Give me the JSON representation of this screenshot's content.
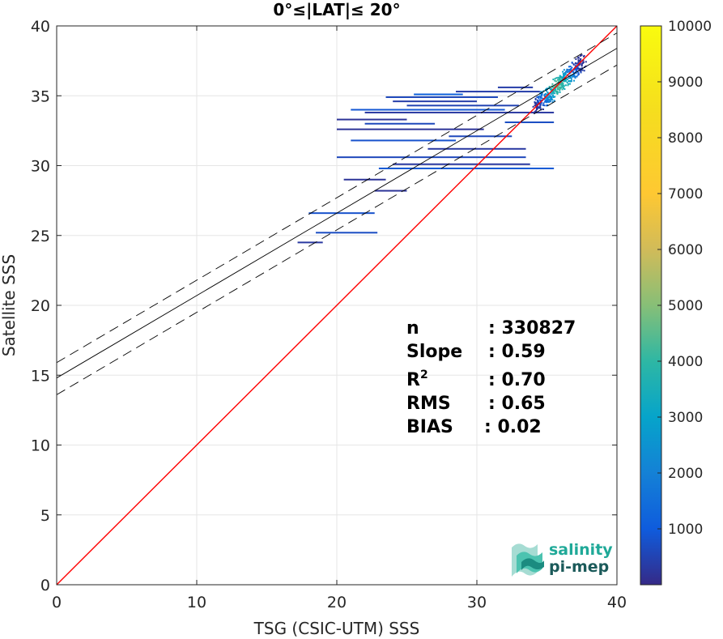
{
  "chart_data": {
    "type": "heatmap",
    "title": "0°≤|LAT|≤ 20°",
    "xlabel": "TSG (CSIC-UTM) SSS",
    "ylabel": "Satellite SSS",
    "xlim": [
      0,
      40
    ],
    "ylim": [
      0,
      40
    ],
    "xticks": [
      "0",
      "10",
      "20",
      "30",
      "40"
    ],
    "yticks": [
      "0",
      "5",
      "10",
      "15",
      "20",
      "25",
      "30",
      "35",
      "40"
    ],
    "grid": true,
    "colorbar": {
      "range": [
        0,
        10000
      ],
      "ticks": [
        "1000",
        "2000",
        "3000",
        "4000",
        "5000",
        "6000",
        "7000",
        "8000",
        "9000",
        "10000"
      ],
      "colormap": "parula"
    },
    "lines": [
      {
        "name": "identity",
        "slope": 1.0,
        "intercept": 0.0,
        "color": "#ff0000",
        "style": "solid"
      },
      {
        "name": "regression",
        "slope": 0.59,
        "intercept": 14.8,
        "color": "#000000",
        "style": "solid"
      },
      {
        "name": "regression-upper",
        "slope": 0.59,
        "intercept": 15.9,
        "color": "#000000",
        "style": "dashed"
      },
      {
        "name": "regression-lower",
        "slope": 0.59,
        "intercept": 13.6,
        "color": "#000000",
        "style": "dashed"
      }
    ],
    "density_segments": [
      {
        "x1": 17.2,
        "x2": 19.0,
        "y": 24.5,
        "count": 300
      },
      {
        "x1": 18.5,
        "x2": 22.9,
        "y": 25.2,
        "count": 700
      },
      {
        "x1": 18.0,
        "x2": 22.7,
        "y": 26.6,
        "count": 800
      },
      {
        "x1": 22.7,
        "x2": 25.0,
        "y": 28.2,
        "count": 200
      },
      {
        "x1": 20.5,
        "x2": 23.5,
        "y": 29.0,
        "count": 200
      },
      {
        "x1": 23.0,
        "x2": 35.5,
        "y": 29.8,
        "count": 900
      },
      {
        "x1": 24.0,
        "x2": 33.8,
        "y": 30.1,
        "count": 300
      },
      {
        "x1": 20.0,
        "x2": 33.5,
        "y": 30.6,
        "count": 600
      },
      {
        "x1": 26.5,
        "x2": 33.5,
        "y": 31.2,
        "count": 300
      },
      {
        "x1": 21.0,
        "x2": 28.5,
        "y": 31.8,
        "count": 800
      },
      {
        "x1": 28.0,
        "x2": 32.5,
        "y": 32.1,
        "count": 600
      },
      {
        "x1": 20.0,
        "x2": 30.5,
        "y": 32.6,
        "count": 200
      },
      {
        "x1": 22.0,
        "x2": 27.0,
        "y": 33.0,
        "count": 600
      },
      {
        "x1": 32.0,
        "x2": 35.5,
        "y": 33.1,
        "count": 700
      },
      {
        "x1": 20.0,
        "x2": 25.0,
        "y": 33.3,
        "count": 200
      },
      {
        "x1": 22.0,
        "x2": 35.5,
        "y": 33.8,
        "count": 300
      },
      {
        "x1": 21.0,
        "x2": 32.0,
        "y": 34.0,
        "count": 900
      },
      {
        "x1": 25.0,
        "x2": 33.0,
        "y": 34.3,
        "count": 500
      },
      {
        "x1": 24.0,
        "x2": 30.0,
        "y": 34.6,
        "count": 400
      },
      {
        "x1": 23.5,
        "x2": 31.5,
        "y": 34.9,
        "count": 600
      },
      {
        "x1": 25.5,
        "x2": 29.0,
        "y": 35.1,
        "count": 1200
      },
      {
        "x1": 28.5,
        "x2": 34.5,
        "y": 35.3,
        "count": 400
      },
      {
        "x1": 31.5,
        "x2": 34.0,
        "y": 35.6,
        "count": 400
      }
    ],
    "stats": [
      {
        "label": "n",
        "value": ": 330827"
      },
      {
        "label": "Slope",
        "value": ": 0.59"
      },
      {
        "label": "R",
        "sup": "2",
        "value": ": 0.70"
      },
      {
        "label": "RMS",
        "value": ": 0.65"
      },
      {
        "label": "BIAS",
        "value": ": 0.02"
      }
    ]
  },
  "logo": {
    "line1": "salinity",
    "line2": "pi-mep"
  },
  "colors": {
    "identity": "#ff0000",
    "axis": "#262626",
    "grid": "#e6e6e6",
    "logo_teal": "#1fa998",
    "logo_dark": "#1b5a5a"
  }
}
